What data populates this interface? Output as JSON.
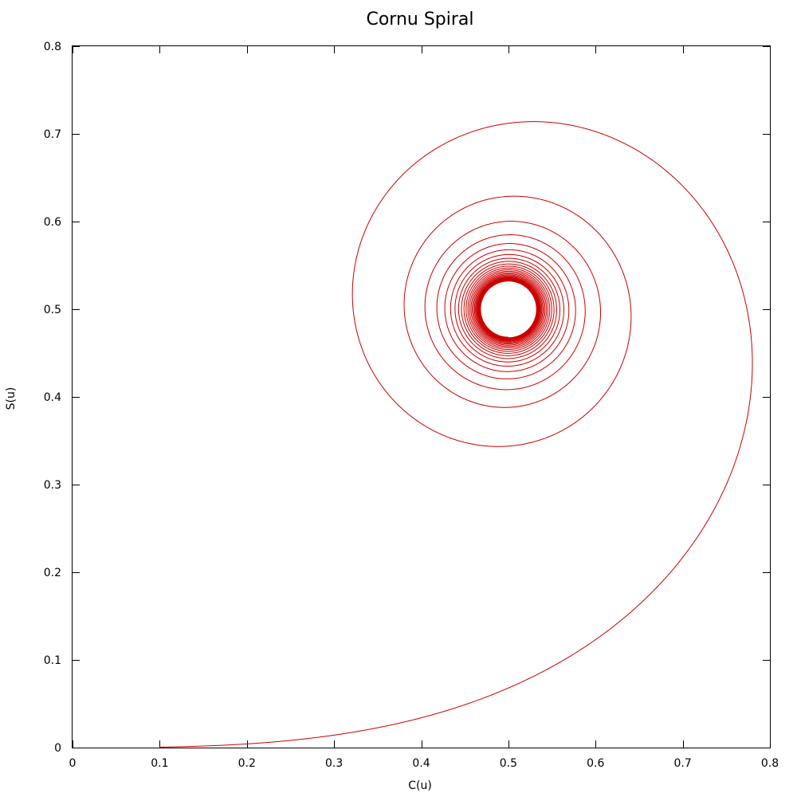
{
  "chart_data": {
    "type": "line",
    "title": "Cornu Spiral",
    "xlabel": "C(u)",
    "ylabel": "S(u)",
    "xlim": [
      0,
      0.8
    ],
    "ylim": [
      0,
      0.8
    ],
    "xticks": [
      "0",
      "0.1",
      "0.2",
      "0.3",
      "0.4",
      "0.5",
      "0.6",
      "0.7",
      "0.8"
    ],
    "yticks": [
      "0",
      "0.1",
      "0.2",
      "0.3",
      "0.4",
      "0.5",
      "0.6",
      "0.7",
      "0.8"
    ],
    "grid": false,
    "series": [
      {
        "u_range": [
          0.1,
          10
        ],
        "color": "#cc0000"
      }
    ]
  }
}
